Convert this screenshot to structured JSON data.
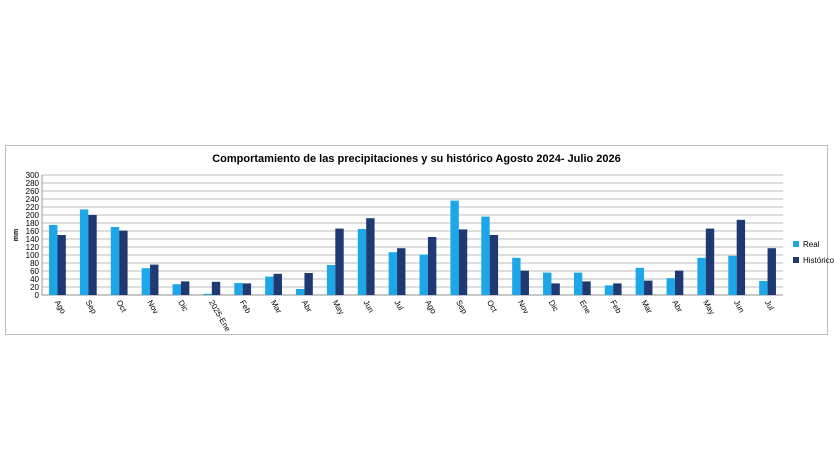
{
  "chart_data": {
    "type": "bar",
    "title": "Comportamiento de las precipitaciones y su histórico Agosto 2024- Julio 2026",
    "xlabel": "",
    "ylabel": "mm",
    "ylim": [
      0,
      300
    ],
    "yticks": [
      0,
      20,
      40,
      60,
      80,
      100,
      120,
      140,
      160,
      180,
      200,
      220,
      240,
      260,
      280,
      300
    ],
    "grid": true,
    "legend_position": "right",
    "categories": [
      "Ago",
      "Sep",
      "Oct",
      "Nov",
      "Dic",
      "2025-Ene",
      "Feb",
      "Mar",
      "Abr",
      "May",
      "Jun",
      "Jul",
      "Ago",
      "Sep",
      "Oct",
      "Nov",
      "Dic",
      "Ene",
      "Feb",
      "Mar",
      "Abr",
      "May",
      "Jun",
      "Jul"
    ],
    "series": [
      {
        "name": "Real",
        "color": "#1ea7e8",
        "values": [
          175,
          214,
          170,
          67,
          27,
          3,
          30,
          46,
          15,
          75,
          165,
          107,
          101,
          236,
          196,
          93,
          56,
          56,
          24,
          68,
          42,
          93,
          98,
          35
        ]
      },
      {
        "name": "Histórico",
        "color": "#1f3a73",
        "values": [
          150,
          200,
          161,
          76,
          34,
          33,
          29,
          53,
          55,
          166,
          192,
          117,
          145,
          164,
          150,
          61,
          29,
          34,
          29,
          36,
          61,
          166,
          188,
          117
        ]
      }
    ]
  }
}
